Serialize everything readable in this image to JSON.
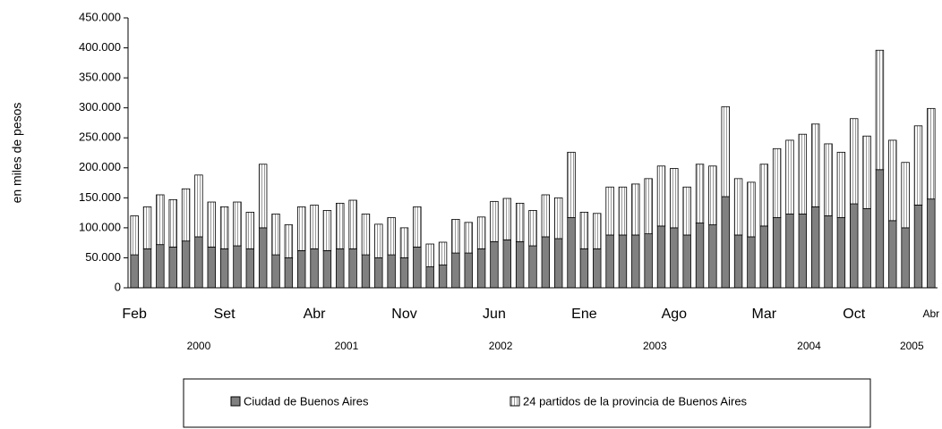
{
  "chart_data": {
    "type": "stacked_bar",
    "y_label": "en miles de pesos",
    "categories": [
      "Feb",
      null,
      null,
      null,
      null,
      null,
      null,
      "Set",
      null,
      null,
      null,
      null,
      null,
      null,
      "Abr",
      null,
      null,
      null,
      null,
      null,
      null,
      "Nov",
      null,
      null,
      null,
      null,
      null,
      null,
      "Jun",
      null,
      null,
      null,
      null,
      null,
      null,
      "Ene",
      null,
      null,
      null,
      null,
      null,
      null,
      "Ago",
      null,
      null,
      null,
      null,
      null,
      null,
      "Mar",
      null,
      null,
      null,
      null,
      null,
      null,
      "Oct",
      null,
      null,
      null,
      null,
      null,
      "Abr"
    ],
    "years": [
      "2000",
      "2001",
      "2002",
      "2003",
      "2004",
      "2005"
    ],
    "series": [
      {
        "name": "Ciudad de Buenos Aires",
        "color": "#808080",
        "values": [
          55000,
          65000,
          72000,
          68000,
          78000,
          85000,
          68000,
          65000,
          70000,
          65000,
          100000,
          55000,
          50000,
          62000,
          65000,
          62000,
          65000,
          65000,
          55000,
          50000,
          55000,
          50000,
          68000,
          35000,
          38000,
          58000,
          58000,
          65000,
          77000,
          80000,
          77000,
          70000,
          85000,
          82000,
          117000,
          65000,
          65000,
          88000,
          88000,
          88000,
          90000,
          103000,
          100000,
          88000,
          108000,
          105000,
          152000,
          88000,
          85000,
          103000,
          117000,
          123000,
          123000,
          135000,
          120000,
          117000,
          140000,
          132000,
          197000,
          112000,
          100000,
          138000,
          148000
        ]
      },
      {
        "name": "24 partidos de la provincia de Buenos Aires",
        "color": "#ffffff",
        "values": [
          65000,
          70000,
          83000,
          79000,
          87000,
          103000,
          75000,
          70000,
          73000,
          61000,
          106000,
          68000,
          55000,
          73000,
          73000,
          67000,
          76000,
          81000,
          68000,
          56000,
          62000,
          50000,
          67000,
          38000,
          38000,
          56000,
          51000,
          53000,
          67000,
          69000,
          64000,
          59000,
          70000,
          68000,
          109000,
          61000,
          59000,
          80000,
          80000,
          85000,
          92000,
          100000,
          99000,
          80000,
          98000,
          98000,
          150000,
          94000,
          91000,
          103000,
          115000,
          123000,
          133000,
          138000,
          120000,
          109000,
          142000,
          121000,
          199000,
          134000,
          109000,
          132000,
          151000
        ]
      }
    ],
    "ylim": [
      0,
      450000
    ],
    "yticks": [
      0,
      {
        "value": 50000,
        "label": "50.000"
      },
      {
        "value": 100000,
        "label": "100.000"
      },
      {
        "value": 150000,
        "label": "150.000"
      },
      {
        "value": 200000,
        "label": "200.000"
      },
      {
        "value": 250000,
        "label": "250.000"
      },
      {
        "value": 300000,
        "label": "300.000"
      },
      {
        "value": 350000,
        "label": "350.000"
      },
      {
        "value": 400000,
        "label": "400.000"
      },
      {
        "value": 450000,
        "label": "450.000"
      }
    ]
  }
}
